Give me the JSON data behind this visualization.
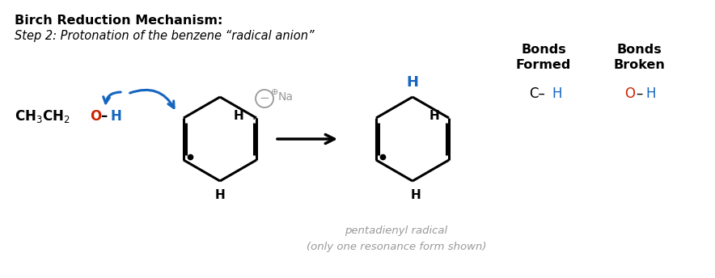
{
  "title": "Birch Reduction Mechanism:",
  "subtitle": "Step 2: Protonation of the benzene “radical anion”",
  "bg_color": "#ffffff",
  "black": "#000000",
  "blue": "#1565C0",
  "red": "#cc2200",
  "gray": "#999999",
  "bonds_formed_header": "Bonds\nFormed",
  "bonds_broken_header": "Bonds\nBroken",
  "pentadienyl_line1": "pentadienyl radical",
  "pentadienyl_line2": "(only one resonance form shown)"
}
